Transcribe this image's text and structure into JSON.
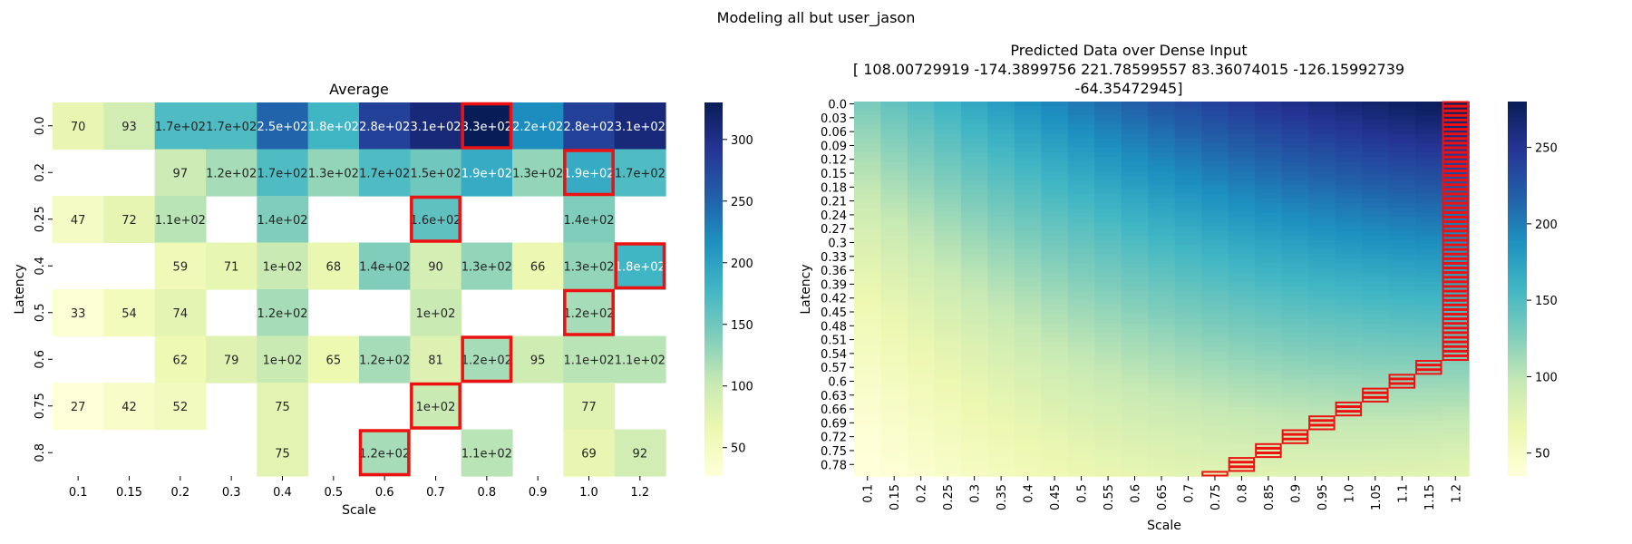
{
  "figure": {
    "suptitle": "Modeling all but user_jason"
  },
  "chart_data": [
    {
      "type": "heatmap",
      "title": "Average",
      "xlabel": "Scale",
      "ylabel": "Latency",
      "x_categories": [
        "0.1",
        "0.15",
        "0.2",
        "0.3",
        "0.4",
        "0.5",
        "0.6",
        "0.7",
        "0.8",
        "0.9",
        "1.0",
        "1.2"
      ],
      "y_categories": [
        "0.0",
        "0.2",
        "0.25",
        "0.4",
        "0.5",
        "0.6",
        "0.75",
        "0.8"
      ],
      "values": [
        [
          70,
          93,
          170,
          170,
          250,
          180,
          280,
          310,
          330,
          220,
          280,
          310
        ],
        [
          null,
          null,
          97,
          120,
          170,
          130,
          170,
          150,
          190,
          130,
          190,
          170
        ],
        [
          47,
          72,
          110,
          null,
          140,
          null,
          null,
          160,
          null,
          null,
          140,
          null
        ],
        [
          null,
          null,
          59,
          71,
          100,
          68,
          140,
          90,
          130,
          66,
          130,
          180
        ],
        [
          33,
          54,
          74,
          null,
          120,
          null,
          null,
          100,
          null,
          null,
          120,
          null
        ],
        [
          null,
          null,
          62,
          79,
          100,
          65,
          120,
          81,
          120,
          95,
          110,
          110
        ],
        [
          27,
          42,
          52,
          null,
          75,
          null,
          null,
          100,
          null,
          null,
          77,
          null
        ],
        [
          null,
          null,
          null,
          null,
          75,
          null,
          120,
          null,
          110,
          null,
          69,
          92
        ]
      ],
      "labels": [
        [
          "70",
          "93",
          "1.7e+02",
          "1.7e+02",
          "2.5e+02",
          "1.8e+02",
          "2.8e+02",
          "3.1e+02",
          "3.3e+02",
          "2.2e+02",
          "2.8e+02",
          "3.1e+02"
        ],
        [
          "",
          "",
          "97",
          "1.2e+02",
          "1.7e+02",
          "1.3e+02",
          "1.7e+02",
          "1.5e+02",
          "1.9e+02",
          "1.3e+02",
          "1.9e+02",
          "1.7e+02"
        ],
        [
          "47",
          "72",
          "1.1e+02",
          "",
          "1.4e+02",
          "",
          "",
          "1.6e+02",
          "",
          "",
          "1.4e+02",
          ""
        ],
        [
          "",
          "",
          "59",
          "71",
          "1e+02",
          "68",
          "1.4e+02",
          "90",
          "1.3e+02",
          "66",
          "1.3e+02",
          "1.8e+02"
        ],
        [
          "33",
          "54",
          "74",
          "",
          "1.2e+02",
          "",
          "",
          "1e+02",
          "",
          "",
          "1.2e+02",
          ""
        ],
        [
          "",
          "",
          "62",
          "79",
          "1e+02",
          "65",
          "1.2e+02",
          "81",
          "1.2e+02",
          "95",
          "1.1e+02",
          "1.1e+02"
        ],
        [
          "27",
          "42",
          "52",
          "",
          "75",
          "",
          "",
          "1e+02",
          "",
          "",
          "77",
          ""
        ],
        [
          "",
          "",
          "",
          "",
          "75",
          "",
          "1.2e+02",
          "",
          "1.1e+02",
          "",
          "69",
          "92"
        ]
      ],
      "highlighted_cells": [
        {
          "row": 0,
          "col": 8
        },
        {
          "row": 1,
          "col": 10
        },
        {
          "row": 2,
          "col": 7
        },
        {
          "row": 3,
          "col": 11
        },
        {
          "row": 4,
          "col": 10
        },
        {
          "row": 5,
          "col": 8
        },
        {
          "row": 6,
          "col": 7
        },
        {
          "row": 7,
          "col": 6
        }
      ],
      "colorbar": {
        "min": 27,
        "max": 330,
        "ticks": [
          50,
          100,
          150,
          200,
          250,
          300
        ]
      },
      "colormap": "YlGnBu"
    },
    {
      "type": "heatmap",
      "title_lines": [
        "Predicted Data over Dense Input",
        "[ 108.00729919 -174.3899756   221.78599557   83.36074015 -126.15992739",
        " -64.35472945]"
      ],
      "xlabel": "Scale",
      "ylabel": "Latency",
      "x_ticks": [
        "0.1",
        "0.15",
        "0.2",
        "0.25",
        "0.3",
        "0.35",
        "0.4",
        "0.45",
        "0.5",
        "0.55",
        "0.6",
        "0.65",
        "0.7",
        "0.75",
        "0.8",
        "0.85",
        "0.9",
        "0.95",
        "1.0",
        "1.05",
        "1.1",
        "1.15",
        "1.2"
      ],
      "y_ticks": [
        "0.0",
        "0.03",
        "0.06",
        "0.09",
        "0.12",
        "0.15",
        "0.18",
        "0.21",
        "0.24",
        "0.27",
        "0.3",
        "0.33",
        "0.36",
        "0.39",
        "0.42",
        "0.45",
        "0.48",
        "0.51",
        "0.54",
        "0.57",
        "0.6",
        "0.63",
        "0.66",
        "0.69",
        "0.72",
        "0.75",
        "0.78"
      ],
      "x_range": [
        0.1,
        1.2
      ],
      "y_range": [
        0.0,
        0.8
      ],
      "surface_coefficients": [
        108.00729919,
        -174.3899756,
        221.78599557,
        83.36074015,
        -126.15992739,
        -64.35472945
      ],
      "colorbar": {
        "min": 35,
        "max": 280,
        "ticks": [
          50,
          100,
          150,
          200,
          250
        ]
      },
      "colormap": "YlGnBu",
      "boundary_note": "red outlined cells along the right edge (scale 1.2, latency 0.0–0.55) and a diagonal staircase down to scale 0.95 at latency 0.79"
    }
  ]
}
